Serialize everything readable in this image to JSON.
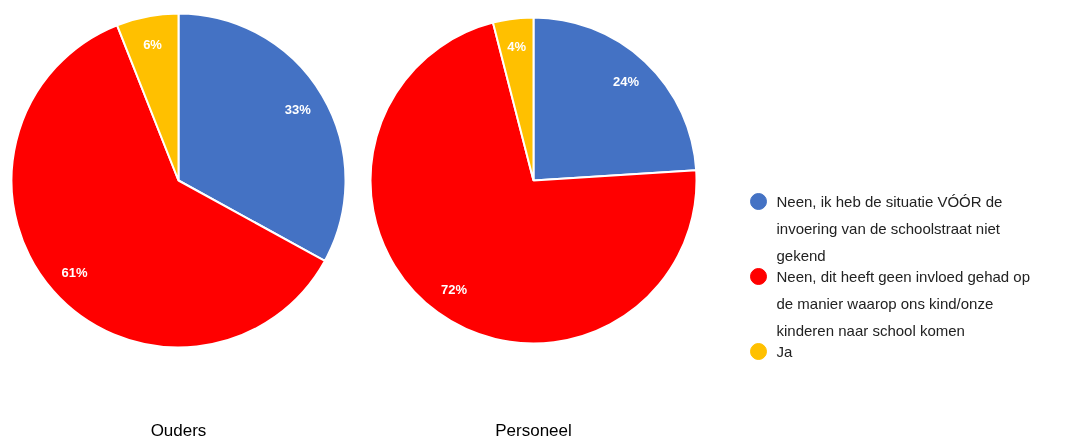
{
  "chart_data": [
    {
      "type": "pie",
      "title": "Ouders",
      "categories": [
        null,
        null,
        null
      ],
      "values": [
        33,
        61,
        6
      ],
      "colors": [
        "#4472c4",
        "#ff0000",
        "#ffc000"
      ],
      "value_labels": [
        "33%",
        "61%",
        "6%"
      ]
    },
    {
      "type": "pie",
      "title": "Personeel",
      "categories": [
        "Neen, ik heb de situatie VÓÓR de invoering van de schoolstraat niet gekend",
        "Neen, dit heeft geen invloed gehad op de manier waarop ons kind/onze kinderen naar school komen",
        "Ja"
      ],
      "values": [
        24,
        72,
        4
      ],
      "colors": [
        "#4472c4",
        "#ff0000",
        "#ffc000"
      ],
      "value_labels": [
        "24%",
        "72%",
        "4%"
      ],
      "legend": "right"
    }
  ]
}
